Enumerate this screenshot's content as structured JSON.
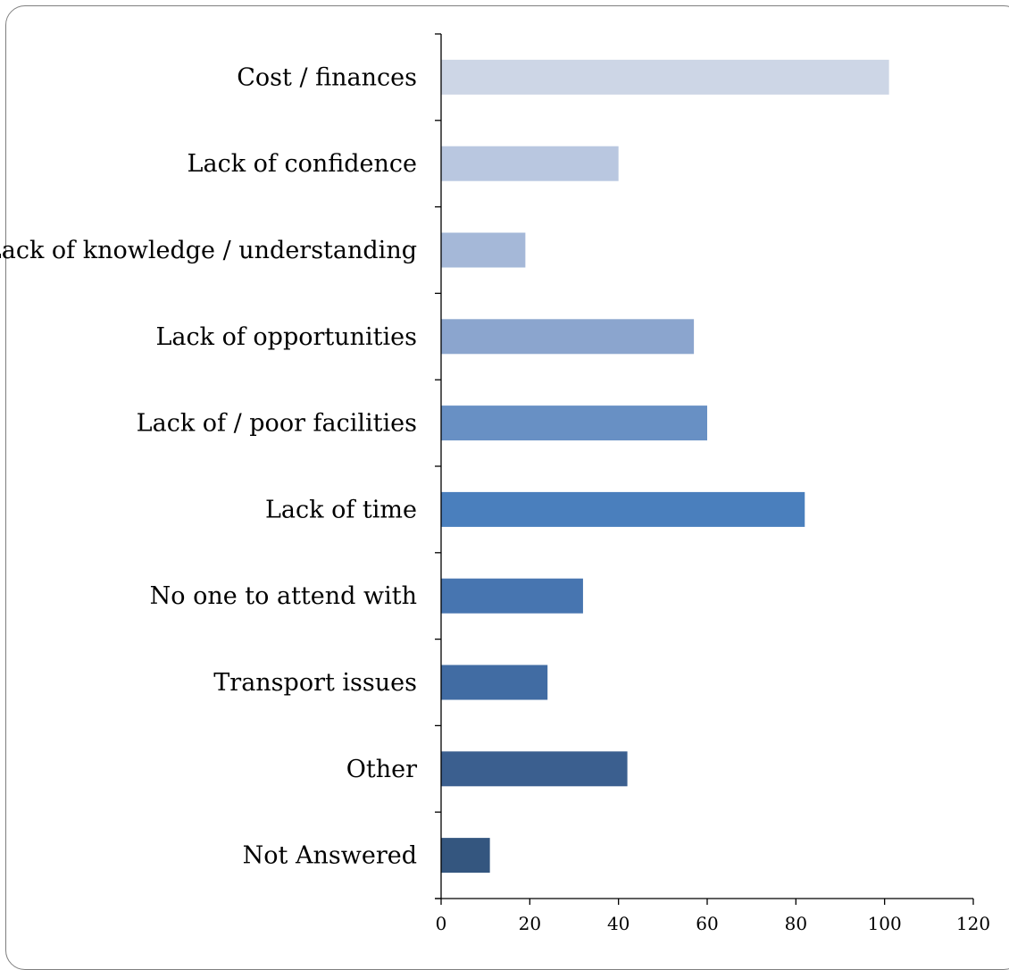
{
  "chart_data": {
    "type": "bar",
    "orientation": "horizontal",
    "categories": [
      "Cost / finances",
      "Lack of confidence",
      "Lack of knowledge / understanding",
      "Lack of opportunities",
      "Lack of / poor facilities",
      "Lack of time",
      "No one to attend with",
      "Transport issues",
      "Other",
      "Not Answered"
    ],
    "values": [
      101,
      40,
      19,
      57,
      60,
      82,
      32,
      24,
      42,
      11
    ],
    "colors": [
      "#cdd6e6",
      "#b9c7e0",
      "#a5b8d8",
      "#8ba5ce",
      "#6890c4",
      "#4a7fbd",
      "#4775b0",
      "#416ca3",
      "#3b5f8f",
      "#34567f"
    ],
    "xlim": [
      0,
      120
    ],
    "xticks": [
      "0",
      "20",
      "40",
      "60",
      "80",
      "100",
      "120"
    ],
    "title": "",
    "xlabel": "",
    "ylabel": "",
    "grid": false,
    "legend": "none"
  }
}
